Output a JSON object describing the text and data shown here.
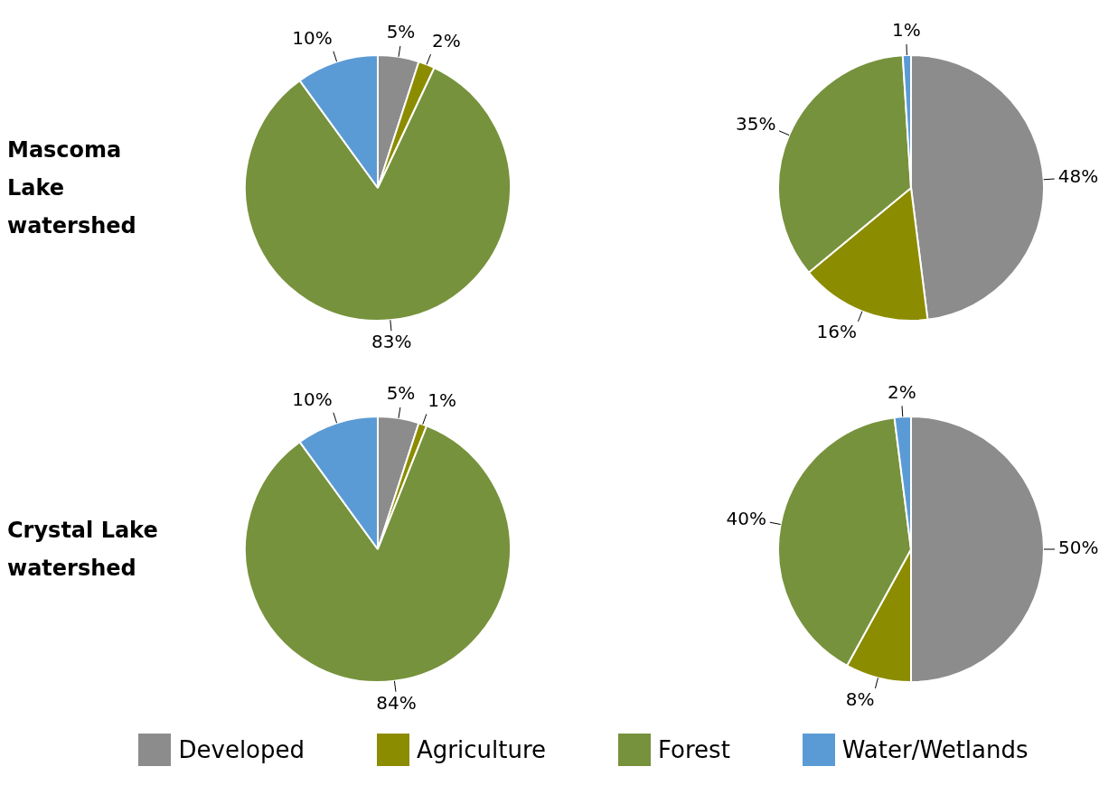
{
  "chart_data": [
    {
      "type": "pie",
      "title": "Mascoma Lake watershed",
      "categories": [
        "Developed",
        "Agriculture",
        "Forest",
        "Water/Wetlands"
      ],
      "values": [
        5,
        2,
        83,
        10
      ],
      "colors": [
        "#8c8c8c",
        "#8c8c00",
        "#76923c",
        "#5b9bd5"
      ],
      "value_labels": [
        "5%",
        "2%",
        "83%",
        "10%"
      ],
      "legend": "bottom"
    },
    {
      "type": "pie",
      "categories": [
        null,
        null,
        null,
        null
      ],
      "values": [
        48,
        16,
        35,
        1
      ],
      "colors": [
        "#8c8c8c",
        "#8c8c00",
        "#76923c",
        "#5b9bd5"
      ],
      "value_labels": [
        "48%",
        "16%",
        "35%",
        "1%"
      ]
    },
    {
      "type": "pie",
      "title": "Crystal Lake watershed",
      "categories": [
        null,
        null,
        null,
        null
      ],
      "values": [
        5,
        1,
        84,
        10
      ],
      "colors": [
        "#8c8c8c",
        "#8c8c00",
        "#76923c",
        "#5b9bd5"
      ],
      "value_labels": [
        "5%",
        "1%",
        "84%",
        "10%"
      ]
    },
    {
      "type": "pie",
      "categories": [
        null,
        null,
        null,
        null
      ],
      "values": [
        50,
        8,
        40,
        2
      ],
      "colors": [
        "#8c8c8c",
        "#8c8c00",
        "#76923c",
        "#5b9bd5"
      ],
      "value_labels": [
        "50%",
        "8%",
        "40%",
        "2%"
      ]
    }
  ]
}
